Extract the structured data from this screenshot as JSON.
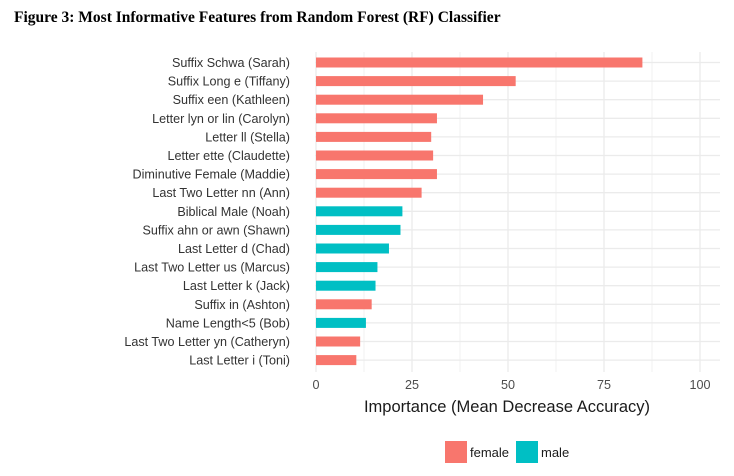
{
  "figure_title": "Figure 3: Most Informative Features from Random Forest (RF) Classifier",
  "colors": {
    "female": "#F8766D",
    "male": "#00BFC4",
    "grid": "#EBEBEB",
    "background": "#FFFFFF"
  },
  "chart_data": {
    "type": "bar",
    "orientation": "horizontal",
    "title": "",
    "xlabel": "Importance (Mean Decrease Accuracy)",
    "ylabel": "",
    "xlim": [
      0,
      105
    ],
    "xticks": [
      0,
      25,
      50,
      75,
      100
    ],
    "grid": true,
    "legend_position": "bottom",
    "legend": [
      {
        "name": "female",
        "color": "#F8766D"
      },
      {
        "name": "male",
        "color": "#00BFC4"
      }
    ],
    "categories": [
      "Suffix Schwa (Sarah)",
      "Suffix Long e (Tiffany)",
      "Suffix een (Kathleen)",
      "Letter lyn or lin (Carolyn)",
      "Letter ll (Stella)",
      "Letter ette (Claudette)",
      "Diminutive Female (Maddie)",
      "Last Two Letter nn (Ann)",
      "Biblical Male (Noah)",
      "Suffix ahn or awn (Shawn)",
      "Last Letter d (Chad)",
      "Last Two Letter us (Marcus)",
      "Last Letter k (Jack)",
      "Suffix in (Ashton)",
      "Name Length<5 (Bob)",
      "Last Two Letter yn (Catheryn)",
      "Last Letter i (Toni)"
    ],
    "values": [
      85,
      52,
      43.5,
      31.5,
      30,
      30.5,
      31.5,
      27.5,
      22.5,
      22,
      19,
      16,
      15.5,
      14.5,
      13,
      11.5,
      10.5
    ],
    "groups": [
      "female",
      "female",
      "female",
      "female",
      "female",
      "female",
      "female",
      "female",
      "male",
      "male",
      "male",
      "male",
      "male",
      "female",
      "male",
      "female",
      "female"
    ]
  }
}
